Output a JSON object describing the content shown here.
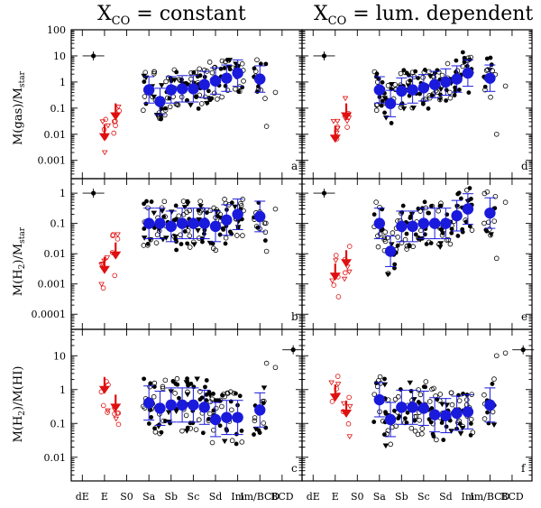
{
  "column_titles": [
    {
      "base": "X",
      "sub": "CO",
      "rest": " = constant"
    },
    {
      "base": "X",
      "sub": "CO",
      "rest": " = lum. dependent"
    }
  ],
  "row_labels": [
    {
      "base": "M(gas)/M",
      "sub": "star",
      "rest": ""
    },
    {
      "base": "M(H",
      "sub": "2",
      "rest": ")/M",
      "sub2": "star"
    },
    {
      "base": "M(H",
      "sub": "2",
      "rest": ")/M(HI)",
      "sub2": ""
    }
  ],
  "panel_letters": [
    "a",
    "b",
    "c",
    "d",
    "e",
    "f"
  ],
  "x_tick_labels": [
    "dE",
    "E",
    "S0",
    "Sa",
    "Sb",
    "Sc",
    "Sd",
    "Im",
    "Im/BCD",
    "BCD"
  ],
  "y_tick_labels": {
    "row0": [
      "100",
      "10",
      "1",
      "0.1",
      "0.01",
      "0.001"
    ],
    "row1": [
      "1",
      "0.1",
      "0.01",
      "0.001",
      "0.0001"
    ],
    "row2": [
      "10",
      "1",
      "0.1",
      "0.01"
    ]
  },
  "colors": {
    "mean": "#1a1adc",
    "early": "#e01010",
    "ink": "#000000"
  },
  "chart_data": {
    "type": "scatter",
    "layout": "3 rows x 2 columns",
    "x_categories": [
      "dE",
      "E",
      "S0",
      "Sa",
      "Sb",
      "Sc",
      "Sd",
      "Im",
      "Im/BCD",
      "BCD"
    ],
    "y_scale": "log",
    "panels": [
      {
        "letter": "a",
        "row": 0,
        "col": 0,
        "ylim": [
          0.0002,
          100
        ],
        "means": [
          [
            3.0,
            0.5
          ],
          [
            3.5,
            0.18
          ],
          [
            4.0,
            0.5
          ],
          [
            4.5,
            0.55
          ],
          [
            5.0,
            0.55
          ],
          [
            5.5,
            0.8
          ],
          [
            6.0,
            1.1
          ],
          [
            6.5,
            1.4
          ],
          [
            7.0,
            2.2
          ],
          [
            8.0,
            1.3
          ]
        ],
        "early_means": [
          [
            1.0,
            0.008
          ],
          [
            1.5,
            0.05
          ]
        ],
        "outliers": [
          [
            8.7,
            0.4
          ],
          [
            8.3,
            0.02
          ]
        ],
        "reference": [
          0.5,
          10
        ]
      },
      {
        "letter": "b",
        "row": 1,
        "col": 0,
        "ylim": [
          3e-05,
          3
        ],
        "means": [
          [
            3.0,
            0.1
          ],
          [
            3.5,
            0.1
          ],
          [
            4.0,
            0.08
          ],
          [
            4.5,
            0.1
          ],
          [
            5.0,
            0.1
          ],
          [
            5.5,
            0.1
          ],
          [
            6.0,
            0.08
          ],
          [
            6.5,
            0.13
          ],
          [
            7.0,
            0.2
          ],
          [
            8.0,
            0.17
          ]
        ],
        "early_means": [
          [
            1.0,
            0.003
          ],
          [
            1.5,
            0.009
          ]
        ],
        "outliers": [
          [
            8.7,
            0.3
          ],
          [
            8.3,
            0.012
          ]
        ],
        "reference": [
          0.5,
          1
        ]
      },
      {
        "letter": "c",
        "row": 2,
        "col": 0,
        "ylim": [
          0.002,
          60
        ],
        "means": [
          [
            3.0,
            0.4
          ],
          [
            3.5,
            0.28
          ],
          [
            4.0,
            0.35
          ],
          [
            4.5,
            0.35
          ],
          [
            5.0,
            0.35
          ],
          [
            5.5,
            0.3
          ],
          [
            6.0,
            0.13
          ],
          [
            6.5,
            0.15
          ],
          [
            7.0,
            0.15
          ],
          [
            8.0,
            0.25
          ]
        ],
        "early_means": [
          [
            1.0,
            1.0
          ],
          [
            1.5,
            0.3
          ]
        ],
        "outliers": [
          [
            8.3,
            6
          ],
          [
            8.7,
            4.5
          ]
        ],
        "reference": [
          9.5,
          15
        ]
      },
      {
        "letter": "d",
        "row": 0,
        "col": 1,
        "ylim": [
          0.0002,
          100
        ],
        "means": [
          [
            3.0,
            0.5
          ],
          [
            3.5,
            0.15
          ],
          [
            4.0,
            0.45
          ],
          [
            4.5,
            0.5
          ],
          [
            5.0,
            0.6
          ],
          [
            5.5,
            0.8
          ],
          [
            6.0,
            1.0
          ],
          [
            6.5,
            1.3
          ],
          [
            7.0,
            2.2
          ],
          [
            8.0,
            1.4
          ]
        ],
        "early_means": [
          [
            1.0,
            0.007
          ],
          [
            1.5,
            0.05
          ]
        ],
        "outliers": [
          [
            8.7,
            0.7
          ],
          [
            8.3,
            0.01
          ]
        ],
        "reference": [
          0.5,
          10
        ]
      },
      {
        "letter": "e",
        "row": 1,
        "col": 1,
        "ylim": [
          3e-05,
          3
        ],
        "means": [
          [
            3.0,
            0.1
          ],
          [
            3.5,
            0.012
          ],
          [
            4.0,
            0.08
          ],
          [
            4.5,
            0.08
          ],
          [
            5.0,
            0.1
          ],
          [
            5.5,
            0.1
          ],
          [
            6.0,
            0.1
          ],
          [
            6.5,
            0.18
          ],
          [
            7.0,
            0.3
          ],
          [
            8.0,
            0.22
          ]
        ],
        "early_means": [
          [
            1.0,
            0.0018
          ],
          [
            1.5,
            0.005
          ]
        ],
        "outliers": [
          [
            8.7,
            0.5
          ],
          [
            8.3,
            0.007
          ]
        ],
        "reference": [
          0.5,
          1
        ]
      },
      {
        "letter": "f",
        "row": 2,
        "col": 1,
        "ylim": [
          0.002,
          60
        ],
        "means": [
          [
            3.0,
            0.5
          ],
          [
            3.5,
            0.13
          ],
          [
            4.0,
            0.3
          ],
          [
            4.5,
            0.3
          ],
          [
            5.0,
            0.28
          ],
          [
            5.5,
            0.18
          ],
          [
            6.0,
            0.17
          ],
          [
            6.5,
            0.2
          ],
          [
            7.0,
            0.22
          ],
          [
            8.0,
            0.35
          ]
        ],
        "early_means": [
          [
            1.0,
            0.6
          ],
          [
            1.5,
            0.2
          ]
        ],
        "outliers": [
          [
            8.3,
            10
          ],
          [
            8.7,
            12
          ]
        ],
        "reference": [
          9.5,
          15
        ]
      }
    ]
  }
}
